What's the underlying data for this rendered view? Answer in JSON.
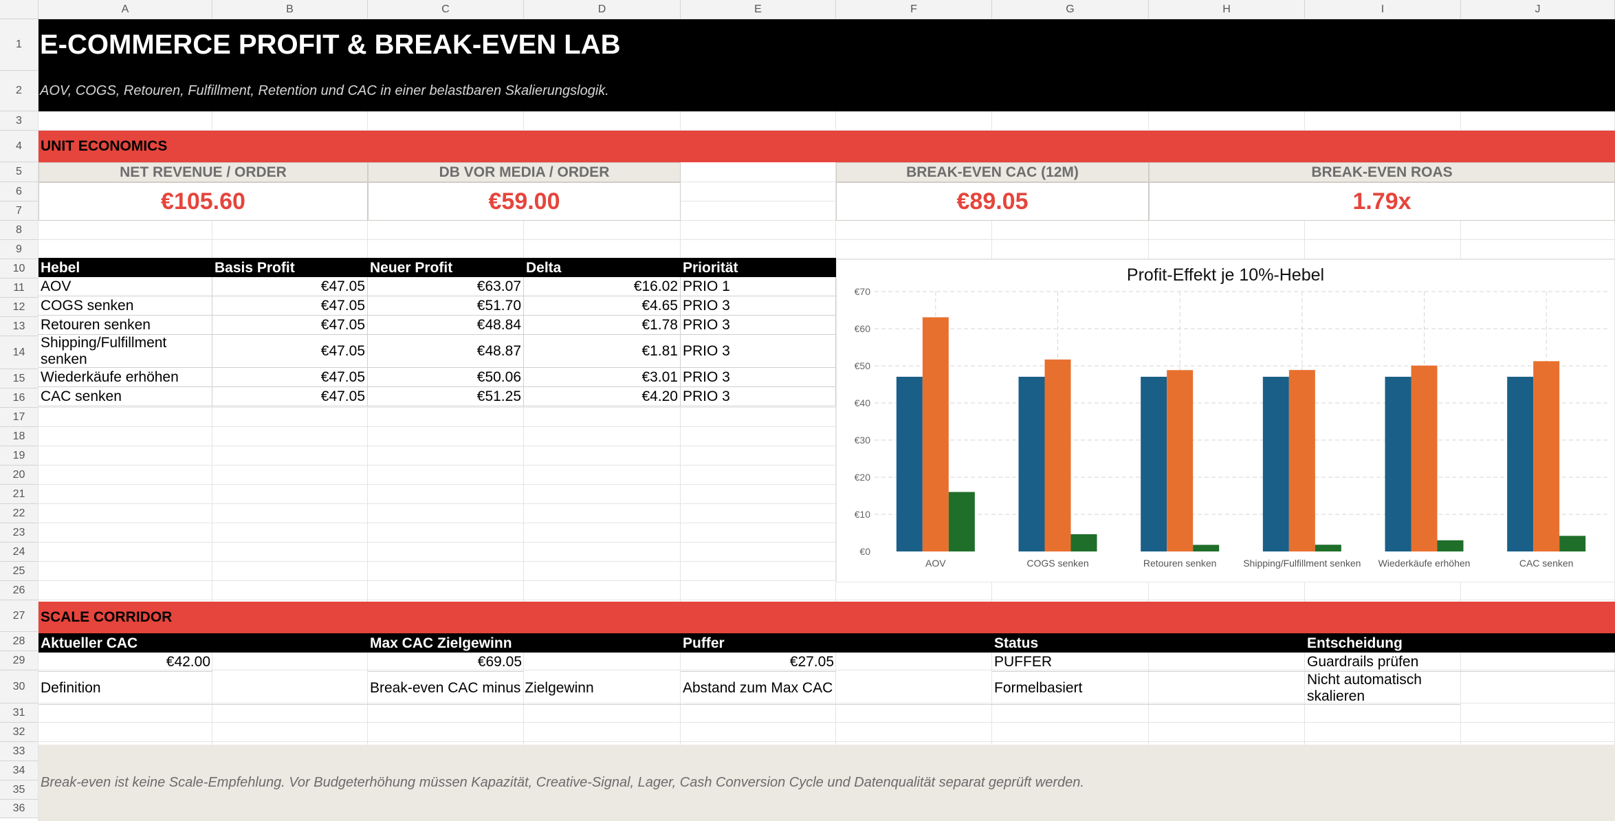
{
  "columns": [
    "A",
    "B",
    "C",
    "D",
    "E",
    "F",
    "G",
    "H",
    "I",
    "J"
  ],
  "rows": [
    "1",
    "2",
    "3",
    "4",
    "5",
    "6",
    "7",
    "8",
    "9",
    "10",
    "11",
    "12",
    "13",
    "14",
    "15",
    "16",
    "17",
    "18",
    "19",
    "20",
    "21",
    "22",
    "23",
    "24",
    "25",
    "26",
    "27",
    "28",
    "29",
    "30",
    "31",
    "32",
    "33",
    "34",
    "35",
    "36"
  ],
  "header": {
    "title": "E-COMMERCE PROFIT & BREAK-EVEN LAB",
    "subtitle": "AOV, COGS, Retouren, Fulfillment, Retention und CAC in einer belastbaren Skalierungslogik."
  },
  "unit_economics": {
    "section_label": "UNIT ECONOMICS",
    "kpis": [
      {
        "label": "NET REVENUE / ORDER",
        "value": "€105.60"
      },
      {
        "label": "DB VOR MEDIA / ORDER",
        "value": "€59.00"
      },
      {
        "label": "BREAK-EVEN CAC (12M)",
        "value": "€89.05"
      },
      {
        "label": "BREAK-EVEN ROAS",
        "value": "1.79x"
      }
    ]
  },
  "levers_table": {
    "headers": [
      "Hebel",
      "Basis Profit",
      "Neuer Profit",
      "Delta",
      "Priorität"
    ],
    "rows": [
      {
        "hebel": "AOV",
        "basis": "€47.05",
        "neu": "€63.07",
        "delta": "€16.02",
        "prio": "PRIO 1"
      },
      {
        "hebel": "COGS senken",
        "basis": "€47.05",
        "neu": "€51.70",
        "delta": "€4.65",
        "prio": "PRIO 3"
      },
      {
        "hebel": "Retouren senken",
        "basis": "€47.05",
        "neu": "€48.84",
        "delta": "€1.78",
        "prio": "PRIO 3"
      },
      {
        "hebel": "Shipping/Fulfillment senken",
        "basis": "€47.05",
        "neu": "€48.87",
        "delta": "€1.81",
        "prio": "PRIO 3"
      },
      {
        "hebel": "Wiederkäufe erhöhen",
        "basis": "€47.05",
        "neu": "€50.06",
        "delta": "€3.01",
        "prio": "PRIO 3"
      },
      {
        "hebel": "CAC senken",
        "basis": "€47.05",
        "neu": "€51.25",
        "delta": "€4.20",
        "prio": "PRIO 3"
      }
    ]
  },
  "chart_data": {
    "type": "bar",
    "title": "Profit-Effekt je 10%-Hebel",
    "categories": [
      "AOV",
      "COGS senken",
      "Retouren senken",
      "Shipping/Fulfillment senken",
      "Wiederkäufe erhöhen",
      "CAC senken"
    ],
    "series": [
      {
        "values": [
          47.05,
          47.05,
          47.05,
          47.05,
          47.05,
          47.05
        ],
        "color": "#1a5f87"
      },
      {
        "values": [
          63.07,
          51.7,
          48.84,
          48.87,
          50.06,
          51.25
        ],
        "color": "#e8702f"
      },
      {
        "values": [
          16.02,
          4.65,
          1.78,
          1.81,
          3.01,
          4.2
        ],
        "color": "#1f6e2a"
      }
    ],
    "ylim": [
      0,
      70
    ],
    "yticks": [
      "€0",
      "€10",
      "€20",
      "€30",
      "€40",
      "€50",
      "€60",
      "€70"
    ],
    "grid": true,
    "legend": "none"
  },
  "scale_corridor": {
    "section_label": "SCALE CORRIDOR",
    "headers": [
      "Aktueller CAC",
      "Max CAC Zielgewinn",
      "Puffer",
      "Status",
      "Entscheidung"
    ],
    "values": [
      "€42.00",
      "€69.05",
      "€27.05",
      "PUFFER",
      "Guardrails prüfen"
    ],
    "definitions": [
      "Definition",
      "Break-even CAC minus Zielgewinn",
      "Abstand zum Max CAC",
      "Formelbasiert",
      "Nicht automatisch skalieren"
    ]
  },
  "note": "Break-even ist keine Scale-Empfehlung. Vor Budgeterhöhung müssen Kapazität, Creative-Signal, Lager, Cash Conversion Cycle und Datenqualität separat geprüft werden."
}
